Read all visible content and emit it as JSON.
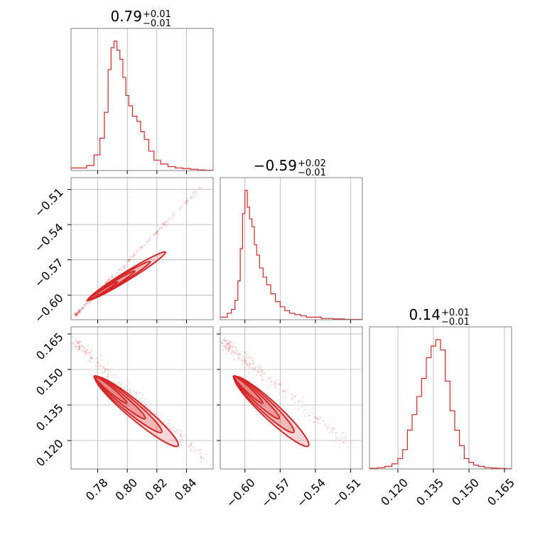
{
  "chart_data": {
    "type": "corner",
    "color": "#d62728",
    "grid": true,
    "parameters": [
      {
        "title": {
          "median": "0.79",
          "plus": "+0.01",
          "minus": "−0.01"
        },
        "range": [
          0.762,
          0.858
        ],
        "ticks": [
          0.78,
          0.8,
          0.82,
          0.84
        ],
        "tick_labels": [
          "0.78",
          "0.80",
          "0.82",
          "0.84"
        ],
        "hist_x": [
          0.77,
          0.775,
          0.78,
          0.783,
          0.786,
          0.788,
          0.79,
          0.792,
          0.794,
          0.796,
          0.798,
          0.8,
          0.802,
          0.805,
          0.808,
          0.81,
          0.813,
          0.816,
          0.82,
          0.825,
          0.83,
          0.835,
          0.84,
          0.845,
          0.85,
          0.855
        ],
        "hist_y": [
          0.02,
          0.04,
          0.12,
          0.25,
          0.45,
          0.78,
          0.95,
          1.0,
          0.93,
          0.86,
          0.72,
          0.58,
          0.5,
          0.42,
          0.38,
          0.3,
          0.24,
          0.15,
          0.08,
          0.05,
          0.03,
          0.02,
          0.015,
          0.01,
          0.005,
          0.002
        ]
      },
      {
        "title": {
          "median": "−0.59",
          "plus": "+0.02",
          "minus": "−0.01"
        },
        "range": [
          -0.621,
          -0.5
        ],
        "ticks": [
          -0.6,
          -0.57,
          -0.54,
          -0.51
        ],
        "tick_labels": [
          "−0.60",
          "−0.57",
          "−0.54",
          "−0.51"
        ],
        "hist_x": [
          -0.617,
          -0.613,
          -0.61,
          -0.607,
          -0.605,
          -0.603,
          -0.601,
          -0.599,
          -0.597,
          -0.595,
          -0.593,
          -0.591,
          -0.589,
          -0.586,
          -0.583,
          -0.58,
          -0.576,
          -0.572,
          -0.568,
          -0.564,
          -0.56,
          -0.555,
          -0.55,
          -0.545,
          -0.54,
          -0.53,
          -0.52,
          -0.51
        ],
        "hist_y": [
          0.02,
          0.05,
          0.08,
          0.15,
          0.3,
          0.55,
          0.82,
          1.0,
          0.87,
          0.78,
          0.72,
          0.58,
          0.5,
          0.4,
          0.33,
          0.27,
          0.2,
          0.14,
          0.1,
          0.07,
          0.05,
          0.04,
          0.03,
          0.02,
          0.02,
          0.01,
          0.006,
          0.003
        ]
      },
      {
        "title": {
          "median": "0.14",
          "plus": "+0.01",
          "minus": "−0.01"
        },
        "range": [
          0.108,
          0.168
        ],
        "ticks": [
          0.12,
          0.135,
          0.15,
          0.165
        ],
        "tick_labels": [
          "0.120",
          "0.135",
          "0.150",
          "0.165"
        ],
        "hist_x": [
          0.11,
          0.113,
          0.116,
          0.119,
          0.121,
          0.123,
          0.125,
          0.127,
          0.129,
          0.131,
          0.133,
          0.135,
          0.137,
          0.139,
          0.141,
          0.143,
          0.145,
          0.147,
          0.149,
          0.151,
          0.153,
          0.155,
          0.158,
          0.161,
          0.164,
          0.167
        ],
        "hist_y": [
          0.005,
          0.01,
          0.02,
          0.04,
          0.08,
          0.15,
          0.3,
          0.42,
          0.56,
          0.7,
          0.86,
          0.95,
          1.0,
          0.92,
          0.68,
          0.45,
          0.3,
          0.18,
          0.08,
          0.05,
          0.03,
          0.02,
          0.01,
          0.006,
          0.004,
          0.002
        ]
      }
    ],
    "pairs": [
      {
        "x_param": 0,
        "y_param": 1,
        "trend": {
          "x": [
            0.765,
            0.85
          ],
          "y": [
            -0.617,
            -0.508
          ]
        },
        "core": {
          "x": [
            0.775,
            0.82
          ],
          "y": [
            -0.603,
            -0.568
          ]
        }
      },
      {
        "x_param": 0,
        "y_param": 2,
        "trend": {
          "x": [
            0.765,
            0.855
          ],
          "y": [
            0.161,
            0.111
          ]
        },
        "core": {
          "x": [
            0.78,
            0.828
          ],
          "y": [
            0.146,
            0.121
          ]
        }
      },
      {
        "x_param": 1,
        "y_param": 2,
        "trend": {
          "x": [
            -0.617,
            -0.51
          ],
          "y": [
            0.161,
            0.118
          ]
        },
        "core": {
          "x": [
            -0.607,
            -0.553
          ],
          "y": [
            0.146,
            0.121
          ]
        }
      }
    ]
  }
}
